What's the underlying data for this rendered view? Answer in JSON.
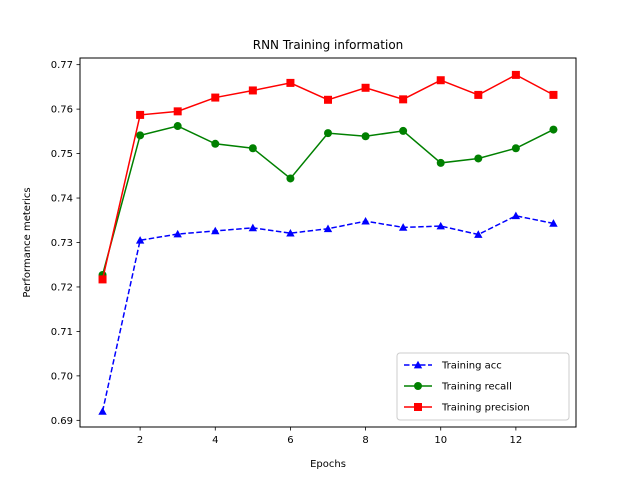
{
  "chart_data": {
    "type": "line",
    "title": "RNN Training information",
    "xlabel": "Epochs",
    "ylabel": "Performance meterics",
    "x": [
      1,
      2,
      3,
      4,
      5,
      6,
      7,
      8,
      9,
      10,
      11,
      12,
      13
    ],
    "xlim": [
      0.4,
      13.6
    ],
    "ylim": [
      0.6885,
      0.7715
    ],
    "xticks": [
      2,
      4,
      6,
      8,
      10,
      12
    ],
    "yticks": [
      0.69,
      0.7,
      0.71,
      0.72,
      0.73,
      0.74,
      0.75,
      0.76,
      0.77
    ],
    "grid": false,
    "legend_position": "lower-right",
    "series": [
      {
        "name": "Training acc",
        "color": "#0000ff",
        "linestyle": "dashed",
        "marker": "triangle",
        "values": [
          0.692,
          0.7305,
          0.7319,
          0.7326,
          0.7333,
          0.7321,
          0.7331,
          0.7348,
          0.7334,
          0.7337,
          0.7318,
          0.736,
          0.7343
        ]
      },
      {
        "name": "Training recall",
        "color": "#008000",
        "linestyle": "solid",
        "marker": "circle",
        "values": [
          0.7227,
          0.7541,
          0.7562,
          0.7522,
          0.7512,
          0.7444,
          0.7546,
          0.7539,
          0.7551,
          0.7479,
          0.7489,
          0.7512,
          0.7554
        ]
      },
      {
        "name": "Training precision",
        "color": "#ff0000",
        "linestyle": "solid",
        "marker": "square",
        "values": [
          0.7217,
          0.7587,
          0.7595,
          0.7626,
          0.7642,
          0.7659,
          0.7621,
          0.7648,
          0.7622,
          0.7665,
          0.7632,
          0.7677,
          0.7632
        ]
      }
    ]
  }
}
